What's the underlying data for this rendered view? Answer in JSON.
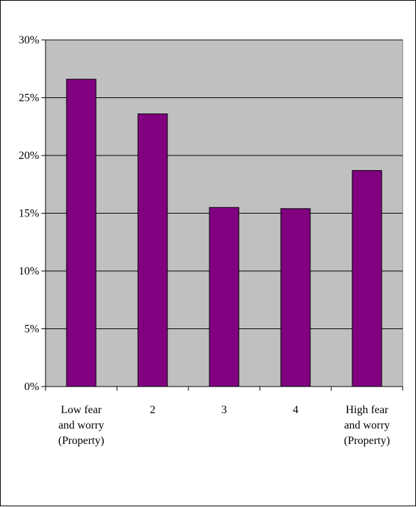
{
  "chart_data": {
    "type": "bar",
    "categories": [
      [
        "Low fear",
        "and worry",
        "(Property)"
      ],
      [
        "2"
      ],
      [
        "3"
      ],
      [
        "4"
      ],
      [
        "High fear",
        "and worry",
        "(Property)"
      ]
    ],
    "values": [
      26.6,
      23.6,
      15.5,
      15.4,
      18.7
    ],
    "ylim": [
      0,
      30
    ],
    "yticks": [
      "0%",
      "5%",
      "10%",
      "15%",
      "20%",
      "25%",
      "30%"
    ],
    "ytick_values": [
      0,
      5,
      10,
      15,
      20,
      25,
      30
    ],
    "grid": true,
    "colors": {
      "bar": "#800080",
      "plot_background": "#c0c0c0",
      "gridline": "#000000"
    }
  }
}
